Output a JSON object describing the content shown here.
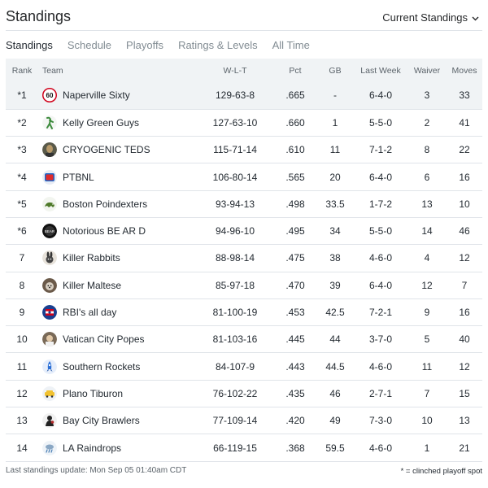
{
  "title": "Standings",
  "view_selector": {
    "label": "Current Standings",
    "icon": "chevron-down-icon"
  },
  "tabs": [
    "Standings",
    "Schedule",
    "Playoffs",
    "Ratings & Levels",
    "All Time"
  ],
  "active_tab": 0,
  "columns": [
    "Rank",
    "Team",
    "W-L-T",
    "Pct",
    "GB",
    "Last Week",
    "Waiver",
    "Moves"
  ],
  "highlight_row": 0,
  "rows": [
    {
      "rank": "*1",
      "team": "Naperville Sixty",
      "logo": "speed-limit-60-icon",
      "wlt": "129-63-8",
      "pct": ".665",
      "gb": "-",
      "last_week": "6-4-0",
      "waiver": "3",
      "moves": "33"
    },
    {
      "rank": "*2",
      "team": "Kelly Green Guys",
      "logo": "green-figure-icon",
      "wlt": "127-63-10",
      "pct": ".660",
      "gb": "1",
      "last_week": "5-5-0",
      "waiver": "2",
      "moves": "41"
    },
    {
      "rank": "*3",
      "team": "CRYOGENIC TEDS",
      "logo": "portrait-photo-icon",
      "wlt": "115-71-14",
      "pct": ".610",
      "gb": "11",
      "last_week": "7-1-2",
      "waiver": "8",
      "moves": "22"
    },
    {
      "rank": "*4",
      "team": "PTBNL",
      "logo": "red-tv-icon",
      "wlt": "106-80-14",
      "pct": ".565",
      "gb": "20",
      "last_week": "6-4-0",
      "waiver": "6",
      "moves": "16"
    },
    {
      "rank": "*5",
      "team": "Boston Poindexters",
      "logo": "green-dinosaur-icon",
      "wlt": "93-94-13",
      "pct": ".498",
      "gb": "33.5",
      "last_week": "1-7-2",
      "waiver": "13",
      "moves": "10"
    },
    {
      "rank": "*6",
      "team": "Notorious BE AR D",
      "logo": "black-bear-icon",
      "wlt": "94-96-10",
      "pct": ".495",
      "gb": "34",
      "last_week": "5-5-0",
      "waiver": "14",
      "moves": "46"
    },
    {
      "rank": "7",
      "team": "Killer Rabbits",
      "logo": "rabbit-icon",
      "wlt": "88-98-14",
      "pct": ".475",
      "gb": "38",
      "last_week": "4-6-0",
      "waiver": "4",
      "moves": "12"
    },
    {
      "rank": "8",
      "team": "Killer Maltese",
      "logo": "dog-photo-icon",
      "wlt": "85-97-18",
      "pct": ".470",
      "gb": "39",
      "last_week": "6-4-0",
      "waiver": "12",
      "moves": "7"
    },
    {
      "rank": "9",
      "team": "RBI's all day",
      "logo": "flag-badge-icon",
      "wlt": "81-100-19",
      "pct": ".453",
      "gb": "42.5",
      "last_week": "7-2-1",
      "waiver": "9",
      "moves": "16"
    },
    {
      "rank": "10",
      "team": "Vatican City Popes",
      "logo": "pope-photo-icon",
      "wlt": "81-103-16",
      "pct": ".445",
      "gb": "44",
      "last_week": "3-7-0",
      "waiver": "5",
      "moves": "40"
    },
    {
      "rank": "11",
      "team": "Southern Rockets",
      "logo": "rocket-icon",
      "wlt": "84-107-9",
      "pct": ".443",
      "gb": "44.5",
      "last_week": "4-6-0",
      "waiver": "11",
      "moves": "12"
    },
    {
      "rank": "12",
      "team": "Plano Tiburon",
      "logo": "yellow-car-icon",
      "wlt": "76-102-22",
      "pct": ".435",
      "gb": "46",
      "last_week": "2-7-1",
      "waiver": "7",
      "moves": "15"
    },
    {
      "rank": "13",
      "team": "Bay City Brawlers",
      "logo": "brawler-icon",
      "wlt": "77-109-14",
      "pct": ".420",
      "gb": "49",
      "last_week": "7-3-0",
      "waiver": "10",
      "moves": "13"
    },
    {
      "rank": "14",
      "team": "LA Raindrops",
      "logo": "rain-cloud-icon",
      "wlt": "66-119-15",
      "pct": ".368",
      "gb": "59.5",
      "last_week": "4-6-0",
      "waiver": "1",
      "moves": "21"
    }
  ],
  "footer": {
    "last_update": "Last standings update: Mon Sep 05 01:40am CDT",
    "legend": "* = clinched playoff spot"
  },
  "colors": {
    "header_bg": "#f0f3f5",
    "border": "#e0e4e9",
    "muted_text": "#828c93",
    "text": "#232a31"
  }
}
